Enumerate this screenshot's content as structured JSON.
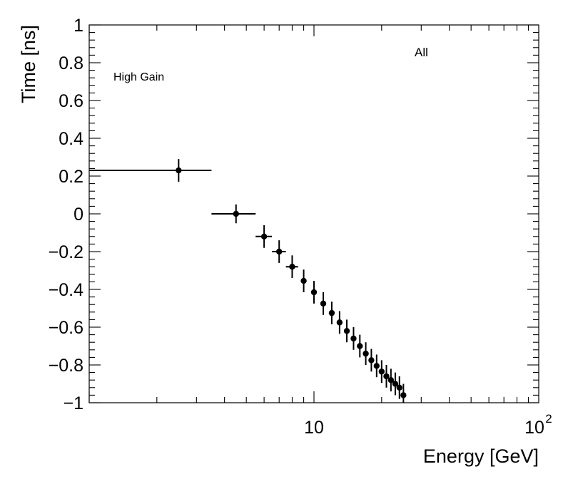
{
  "chart_data": {
    "type": "scatter",
    "title": "",
    "xlabel": "Energy [GeV]",
    "ylabel": "Time [ns]",
    "xscale": "log",
    "xlim": [
      1,
      100
    ],
    "ylim": [
      -1,
      1
    ],
    "x_tick_labels": [
      {
        "value": 10,
        "base": "10",
        "exp": ""
      },
      {
        "value": 100,
        "base": "10",
        "exp": "2"
      }
    ],
    "y_tick_labels": [
      "-1",
      "-0.8",
      "-0.6",
      "-0.4",
      "-0.2",
      "0",
      "0.2",
      "0.4",
      "0.6",
      "0.8",
      "1"
    ],
    "y_tick_values": [
      -1,
      -0.8,
      -0.6,
      -0.4,
      -0.2,
      0,
      0.2,
      0.4,
      0.6,
      0.8,
      1
    ],
    "annotations": {
      "gain_label": "High Gain",
      "set_label": "All"
    },
    "series": [
      {
        "name": "All",
        "points": [
          {
            "x": 2.5,
            "y": 0.23,
            "xlo": 1.0,
            "xhi": 3.5,
            "yerr": 0.06
          },
          {
            "x": 4.5,
            "y": 0.0,
            "xlo": 3.5,
            "xhi": 5.5,
            "yerr": 0.05
          },
          {
            "x": 6.0,
            "y": -0.12,
            "xlo": 5.5,
            "xhi": 6.5,
            "yerr": 0.06
          },
          {
            "x": 7.0,
            "y": -0.2,
            "xlo": 6.5,
            "xhi": 7.5,
            "yerr": 0.06
          },
          {
            "x": 8.0,
            "y": -0.28,
            "xlo": 7.5,
            "xhi": 8.5,
            "yerr": 0.06
          },
          {
            "x": 9.0,
            "y": -0.355,
            "yerr": 0.06
          },
          {
            "x": 10.0,
            "y": -0.415,
            "yerr": 0.06
          },
          {
            "x": 11.0,
            "y": -0.475,
            "yerr": 0.06
          },
          {
            "x": 12.0,
            "y": -0.525,
            "yerr": 0.06
          },
          {
            "x": 13.0,
            "y": -0.575,
            "yerr": 0.06
          },
          {
            "x": 14.0,
            "y": -0.62,
            "yerr": 0.06
          },
          {
            "x": 15.0,
            "y": -0.66,
            "yerr": 0.06
          },
          {
            "x": 16.0,
            "y": -0.7,
            "yerr": 0.06
          },
          {
            "x": 17.0,
            "y": -0.74,
            "yerr": 0.06
          },
          {
            "x": 18.0,
            "y": -0.775,
            "yerr": 0.06
          },
          {
            "x": 19.0,
            "y": -0.805,
            "yerr": 0.06
          },
          {
            "x": 20.0,
            "y": -0.835,
            "yerr": 0.06
          },
          {
            "x": 21.0,
            "y": -0.86,
            "yerr": 0.06
          },
          {
            "x": 22.0,
            "y": -0.88,
            "yerr": 0.06
          },
          {
            "x": 23.0,
            "y": -0.9,
            "yerr": 0.06
          },
          {
            "x": 24.0,
            "y": -0.92,
            "yerr": 0.06
          },
          {
            "x": 25.0,
            "y": -0.96,
            "yerr": 0.06
          }
        ]
      }
    ]
  }
}
